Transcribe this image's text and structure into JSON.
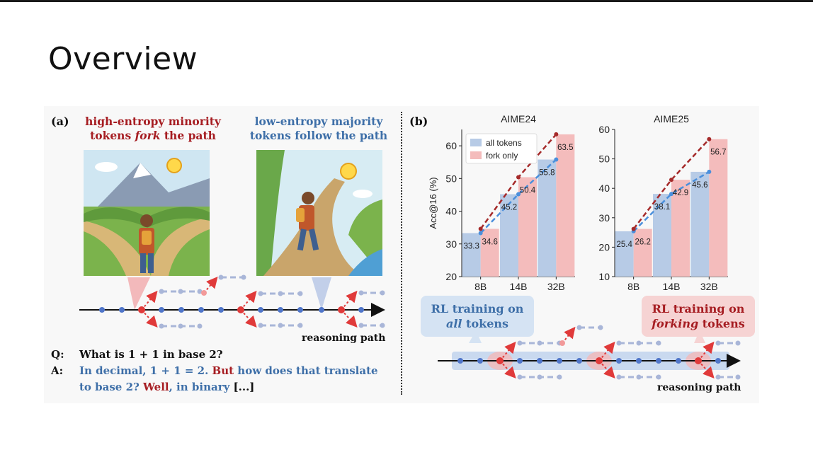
{
  "slide": {
    "title": "Overview"
  },
  "panel_a": {
    "label": "(a)",
    "left_heading_line1": "high-entropy minority",
    "left_heading_line2_pre": "tokens ",
    "left_heading_line2_em": "fork",
    "left_heading_line2_post": " the path",
    "right_heading_line1": "low-entropy majority",
    "right_heading_line2": "tokens follow the path",
    "path_label": "reasoning path",
    "q_key": "Q:",
    "q_text": "What is 1 + 1 in base 2?",
    "a_key": "A:",
    "a_seg1": "In decimal, 1 + 1 = 2.",
    "a_seg2": "But",
    "a_seg3": "how does that translate",
    "a_seg4": "to base 2?",
    "a_seg5": "Well",
    "a_seg6": ", in binary",
    "a_seg7": "[...]"
  },
  "panel_b": {
    "label": "(b)",
    "bubble_left_line1": "RL training on",
    "bubble_left_em": "all",
    "bubble_left_post": " tokens",
    "bubble_right_line1": "RL training on",
    "bubble_right_em": "forking",
    "bubble_right_post": " tokens",
    "path_label": "reasoning path"
  },
  "colors": {
    "all_tokens": "#b7cbe6",
    "fork_only": "#f4bcbc",
    "all_line": "#4a8fdc",
    "fork_line": "#a52a2a"
  },
  "chart_data": [
    {
      "type": "bar",
      "title": "AIME24",
      "ylabel": "Acc@16 (%)",
      "categories": [
        "8B",
        "14B",
        "32B"
      ],
      "ylim": [
        20,
        65
      ],
      "yticks": [
        20,
        30,
        40,
        50,
        60
      ],
      "legend": "top-left",
      "series": [
        {
          "name": "all tokens",
          "values": [
            33.3,
            45.2,
            55.8
          ]
        },
        {
          "name": "fork only",
          "values": [
            34.6,
            50.4,
            63.5
          ]
        }
      ]
    },
    {
      "type": "bar",
      "title": "AIME25",
      "ylabel": "",
      "categories": [
        "8B",
        "14B",
        "32B"
      ],
      "ylim": [
        10,
        60
      ],
      "yticks": [
        10,
        20,
        30,
        40,
        50,
        60
      ],
      "series": [
        {
          "values": [
            25.4,
            38.1,
            45.6
          ]
        },
        {
          "values": [
            26.2,
            42.9,
            56.7
          ]
        }
      ]
    }
  ]
}
